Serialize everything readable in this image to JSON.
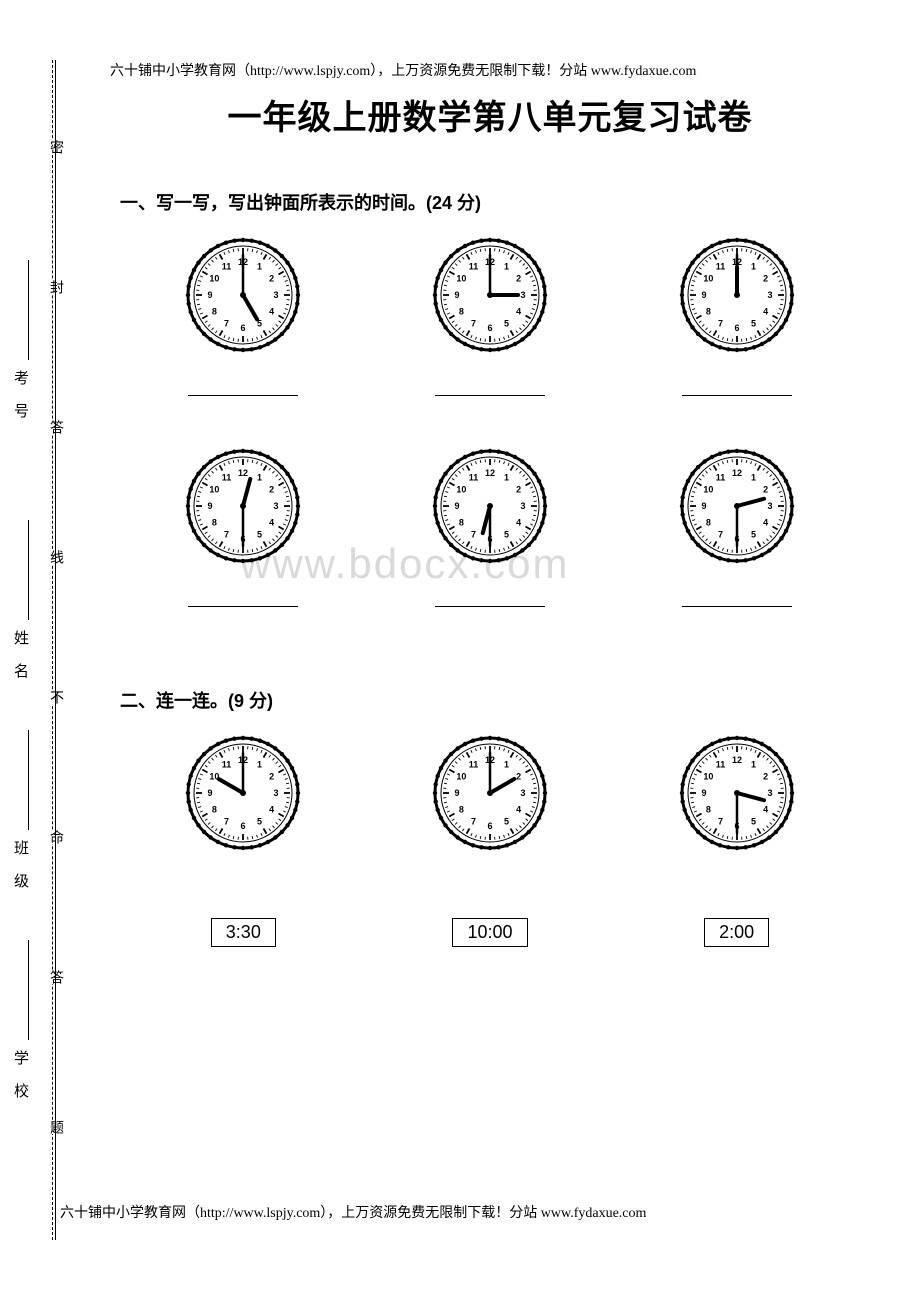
{
  "header": "六十铺中小学教育网（http://www.lspjy.com），上万资源免费无限制下载！分站 www.fydaxue.com",
  "footer": "六十铺中小学教育网（http://www.lspjy.com），上万资源免费无限制下载！分站 www.fydaxue.com",
  "title": "一年级上册数学第八单元复习试卷",
  "watermark": "www.bdocx.com",
  "sidebar": {
    "labels": [
      "学校",
      "班级",
      "姓名",
      "考号"
    ],
    "seal_chars": [
      "密",
      "封",
      "答",
      "线",
      "不",
      "命",
      "答",
      "题"
    ]
  },
  "section1": {
    "title": "一、写一写，写出钟面所表示的时间。(24 分)",
    "clocks": [
      {
        "hour": 5,
        "minute": 0
      },
      {
        "hour": 3,
        "minute": 0
      },
      {
        "hour": 12,
        "minute": 0
      },
      {
        "hour": 12,
        "minute": 30
      },
      {
        "hour": 6,
        "minute": 30
      },
      {
        "hour": 2,
        "minute": 30
      }
    ]
  },
  "section2": {
    "title": "二、连一连。(9 分)",
    "clocks": [
      {
        "hour": 10,
        "minute": 0
      },
      {
        "hour": 2,
        "minute": 0
      },
      {
        "hour": 3,
        "minute": 30
      }
    ],
    "timeboxes": [
      "3:30",
      "10:00",
      "2:00"
    ]
  },
  "clock_style": {
    "radius": 55,
    "stroke": "#000000",
    "face_fill": "#ffffff",
    "num_fontsize": 9,
    "hour_hand_len": 28,
    "minute_hand_len": 40,
    "hour_hand_w": 4,
    "minute_hand_w": 2.5
  }
}
